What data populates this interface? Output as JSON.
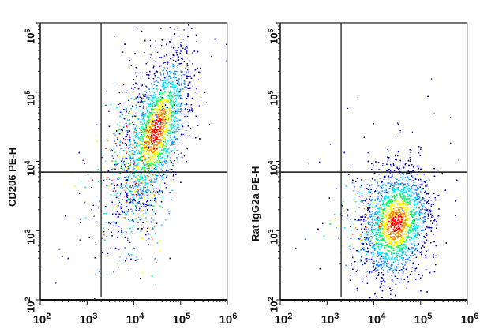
{
  "chart_data": [
    {
      "type": "scatter",
      "subtype": "flow-cytometry-density-dot-plot",
      "title": "",
      "xlabel": "",
      "ylabel": "CD206 PE-H",
      "x_scale": "log",
      "y_scale": "log",
      "xlim": [
        100,
        1000000
      ],
      "ylim": [
        100,
        1000000
      ],
      "x_ticks": [
        "10^2",
        "10^3",
        "10^4",
        "10^5",
        "10^6"
      ],
      "y_ticks": [
        "10^2",
        "10^3",
        "10^4",
        "10^5",
        "10^6"
      ],
      "gates": {
        "vertical_x": 2000,
        "horizontal_y": 7000
      },
      "population": {
        "center_x": 30000,
        "center_y": 28000,
        "spread_log_x": 0.35,
        "spread_log_y": 0.55,
        "correlation": 0.6,
        "tail_toward_low": true
      },
      "density_colors": [
        "#0000cc",
        "#1e90ff",
        "#00e5ff",
        "#00ff66",
        "#ffff00",
        "#ff8800",
        "#ff0000"
      ],
      "grid": false,
      "legend": null
    },
    {
      "type": "scatter",
      "subtype": "flow-cytometry-density-dot-plot",
      "title": "",
      "xlabel": "",
      "ylabel": "Rat IgG2a PE-H",
      "x_scale": "log",
      "y_scale": "log",
      "xlim": [
        100,
        1000000
      ],
      "ylim": [
        100,
        1000000
      ],
      "x_ticks": [
        "10^2",
        "10^3",
        "10^4",
        "10^5",
        "10^6"
      ],
      "y_ticks": [
        "10^2",
        "10^3",
        "10^4",
        "10^5",
        "10^6"
      ],
      "gates": {
        "vertical_x": 2000,
        "horizontal_y": 7000
      },
      "population": {
        "center_x": 30000,
        "center_y": 1300,
        "spread_log_x": 0.35,
        "spread_log_y": 0.4,
        "correlation": 0.2,
        "tail_toward_low": false
      },
      "density_colors": [
        "#0000cc",
        "#1e90ff",
        "#00e5ff",
        "#00ff66",
        "#ffff00",
        "#ff8800",
        "#ff0000"
      ],
      "grid": false,
      "legend": null
    }
  ],
  "panels": [
    {
      "ylabel": "CD206 PE-H",
      "yticks": [
        {
          "base": "10",
          "exp": "6"
        },
        {
          "base": "10",
          "exp": "5"
        },
        {
          "base": "10",
          "exp": "4"
        },
        {
          "base": "10",
          "exp": "3"
        },
        {
          "base": "10",
          "exp": "2"
        }
      ],
      "xticks": [
        {
          "base": "10",
          "exp": "2"
        },
        {
          "base": "10",
          "exp": "3"
        },
        {
          "base": "10",
          "exp": "4"
        },
        {
          "base": "10",
          "exp": "5"
        },
        {
          "base": "10",
          "exp": "6"
        }
      ]
    },
    {
      "ylabel": "Rat IgG2a PE-H",
      "yticks": [
        {
          "base": "10",
          "exp": "6"
        },
        {
          "base": "10",
          "exp": "5"
        },
        {
          "base": "10",
          "exp": "4"
        },
        {
          "base": "10",
          "exp": "3"
        },
        {
          "base": "10",
          "exp": "2"
        }
      ],
      "xticks": [
        {
          "base": "10",
          "exp": "2"
        },
        {
          "base": "10",
          "exp": "3"
        },
        {
          "base": "10",
          "exp": "4"
        },
        {
          "base": "10",
          "exp": "5"
        },
        {
          "base": "10",
          "exp": "6"
        }
      ]
    }
  ]
}
